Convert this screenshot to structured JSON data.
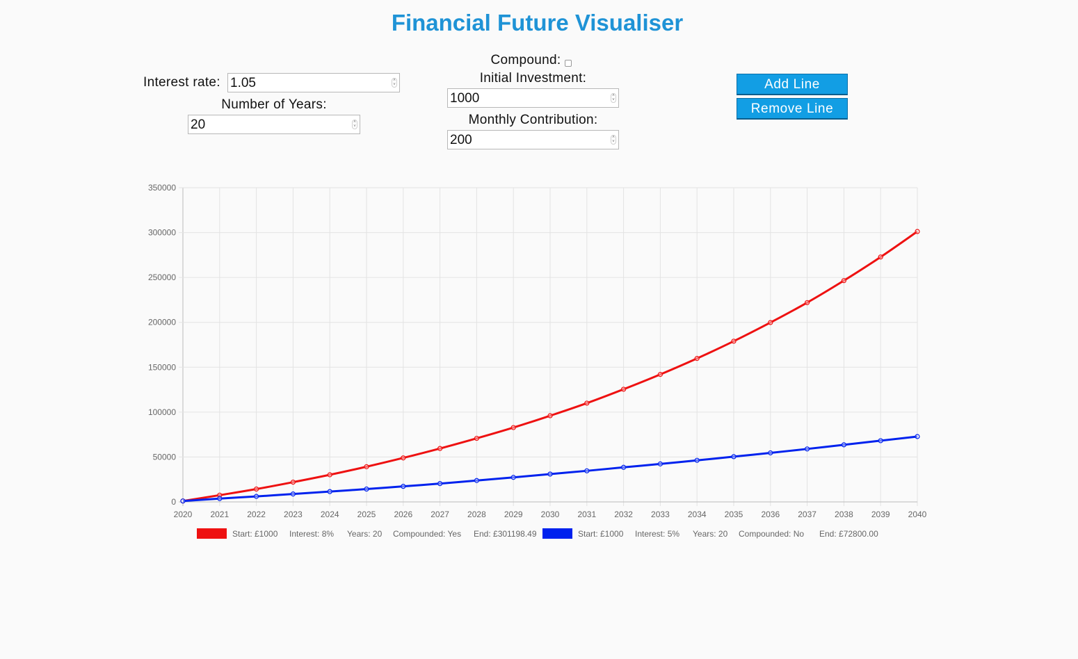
{
  "app": {
    "title": "Financial Future Visualiser"
  },
  "controls": {
    "compound_label": "Compound:",
    "compound_checked": false,
    "interest_rate_label": "Interest rate:",
    "interest_rate_value": "1.05",
    "years_label": "Number of Years:",
    "years_value": "20",
    "initial_label": "Initial Investment:",
    "initial_value": "1000",
    "monthly_label": "Monthly Contribution:",
    "monthly_value": "200",
    "add_line_label": "Add Line",
    "remove_line_label": "Remove Line"
  },
  "icons": {
    "spinner": "number-spinner-icon"
  },
  "chart_data": {
    "type": "line",
    "x": [
      "2020",
      "2021",
      "2022",
      "2023",
      "2024",
      "2025",
      "2026",
      "2027",
      "2028",
      "2029",
      "2030",
      "2031",
      "2032",
      "2033",
      "2034",
      "2035",
      "2036",
      "2037",
      "2038",
      "2039",
      "2040"
    ],
    "ylim": [
      0,
      350000
    ],
    "yticks": [
      "0",
      "50000",
      "100000",
      "150000",
      "200000",
      "250000",
      "300000",
      "350000"
    ],
    "grid": true,
    "legend_position": "bottom",
    "series": [
      {
        "color": "#ee1111",
        "values": [
          1000,
          7500,
          14300,
          22000,
          30200,
          39200,
          49000,
          59500,
          70800,
          82800,
          96000,
          110000,
          125500,
          142000,
          159800,
          179000,
          199800,
          222000,
          246500,
          272800,
          301198.49
        ],
        "legend": [
          "Start: £1000",
          "Interest: 8%",
          "Years: 20",
          "Compounded: Yes",
          "End: £301198.49"
        ]
      },
      {
        "color": "#0022ee",
        "values": [
          1000,
          3700,
          6100,
          8800,
          11500,
          14300,
          17300,
          20400,
          23800,
          27300,
          31000,
          34600,
          38500,
          42300,
          46300,
          50400,
          54600,
          59000,
          63600,
          68200,
          72800
        ],
        "legend": [
          "Start: £1000",
          "Interest: 5%",
          "Years: 20",
          "Compounded: No",
          "End: £72800.00"
        ]
      }
    ]
  }
}
